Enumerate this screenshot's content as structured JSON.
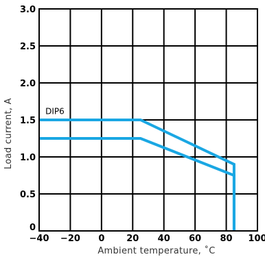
{
  "chart_data": {
    "type": "line",
    "xlabel": "Ambient  temperature,  ˚C",
    "ylabel": "Load  current,  A",
    "xlim": [
      -40,
      100
    ],
    "ylim": [
      0,
      3.0
    ],
    "x_ticks": [
      -40,
      -20,
      0,
      20,
      40,
      60,
      80,
      100
    ],
    "x_tick_labels": [
      "−40",
      "−20",
      "0",
      "20",
      "40",
      "60",
      "80",
      "100"
    ],
    "y_ticks": [
      0,
      0.5,
      1.0,
      1.5,
      2.0,
      2.5,
      3.0
    ],
    "y_tick_labels": [
      "0",
      "0.5",
      "1.0",
      "1.5",
      "2.0",
      "2.5",
      "3.0"
    ],
    "grid": true,
    "line_color": "#1aa7e3",
    "annotations": [
      {
        "text": "DIP6",
        "x": -36,
        "y": 1.58
      }
    ],
    "series": [
      {
        "name": "DIP6",
        "points": [
          [
            -40,
            1.5
          ],
          [
            25,
            1.5
          ],
          [
            85,
            0.9
          ],
          [
            85,
            0
          ]
        ]
      },
      {
        "points": [
          [
            -40,
            1.25
          ],
          [
            25,
            1.25
          ],
          [
            85,
            0.75
          ],
          [
            85,
            0
          ]
        ]
      }
    ]
  }
}
